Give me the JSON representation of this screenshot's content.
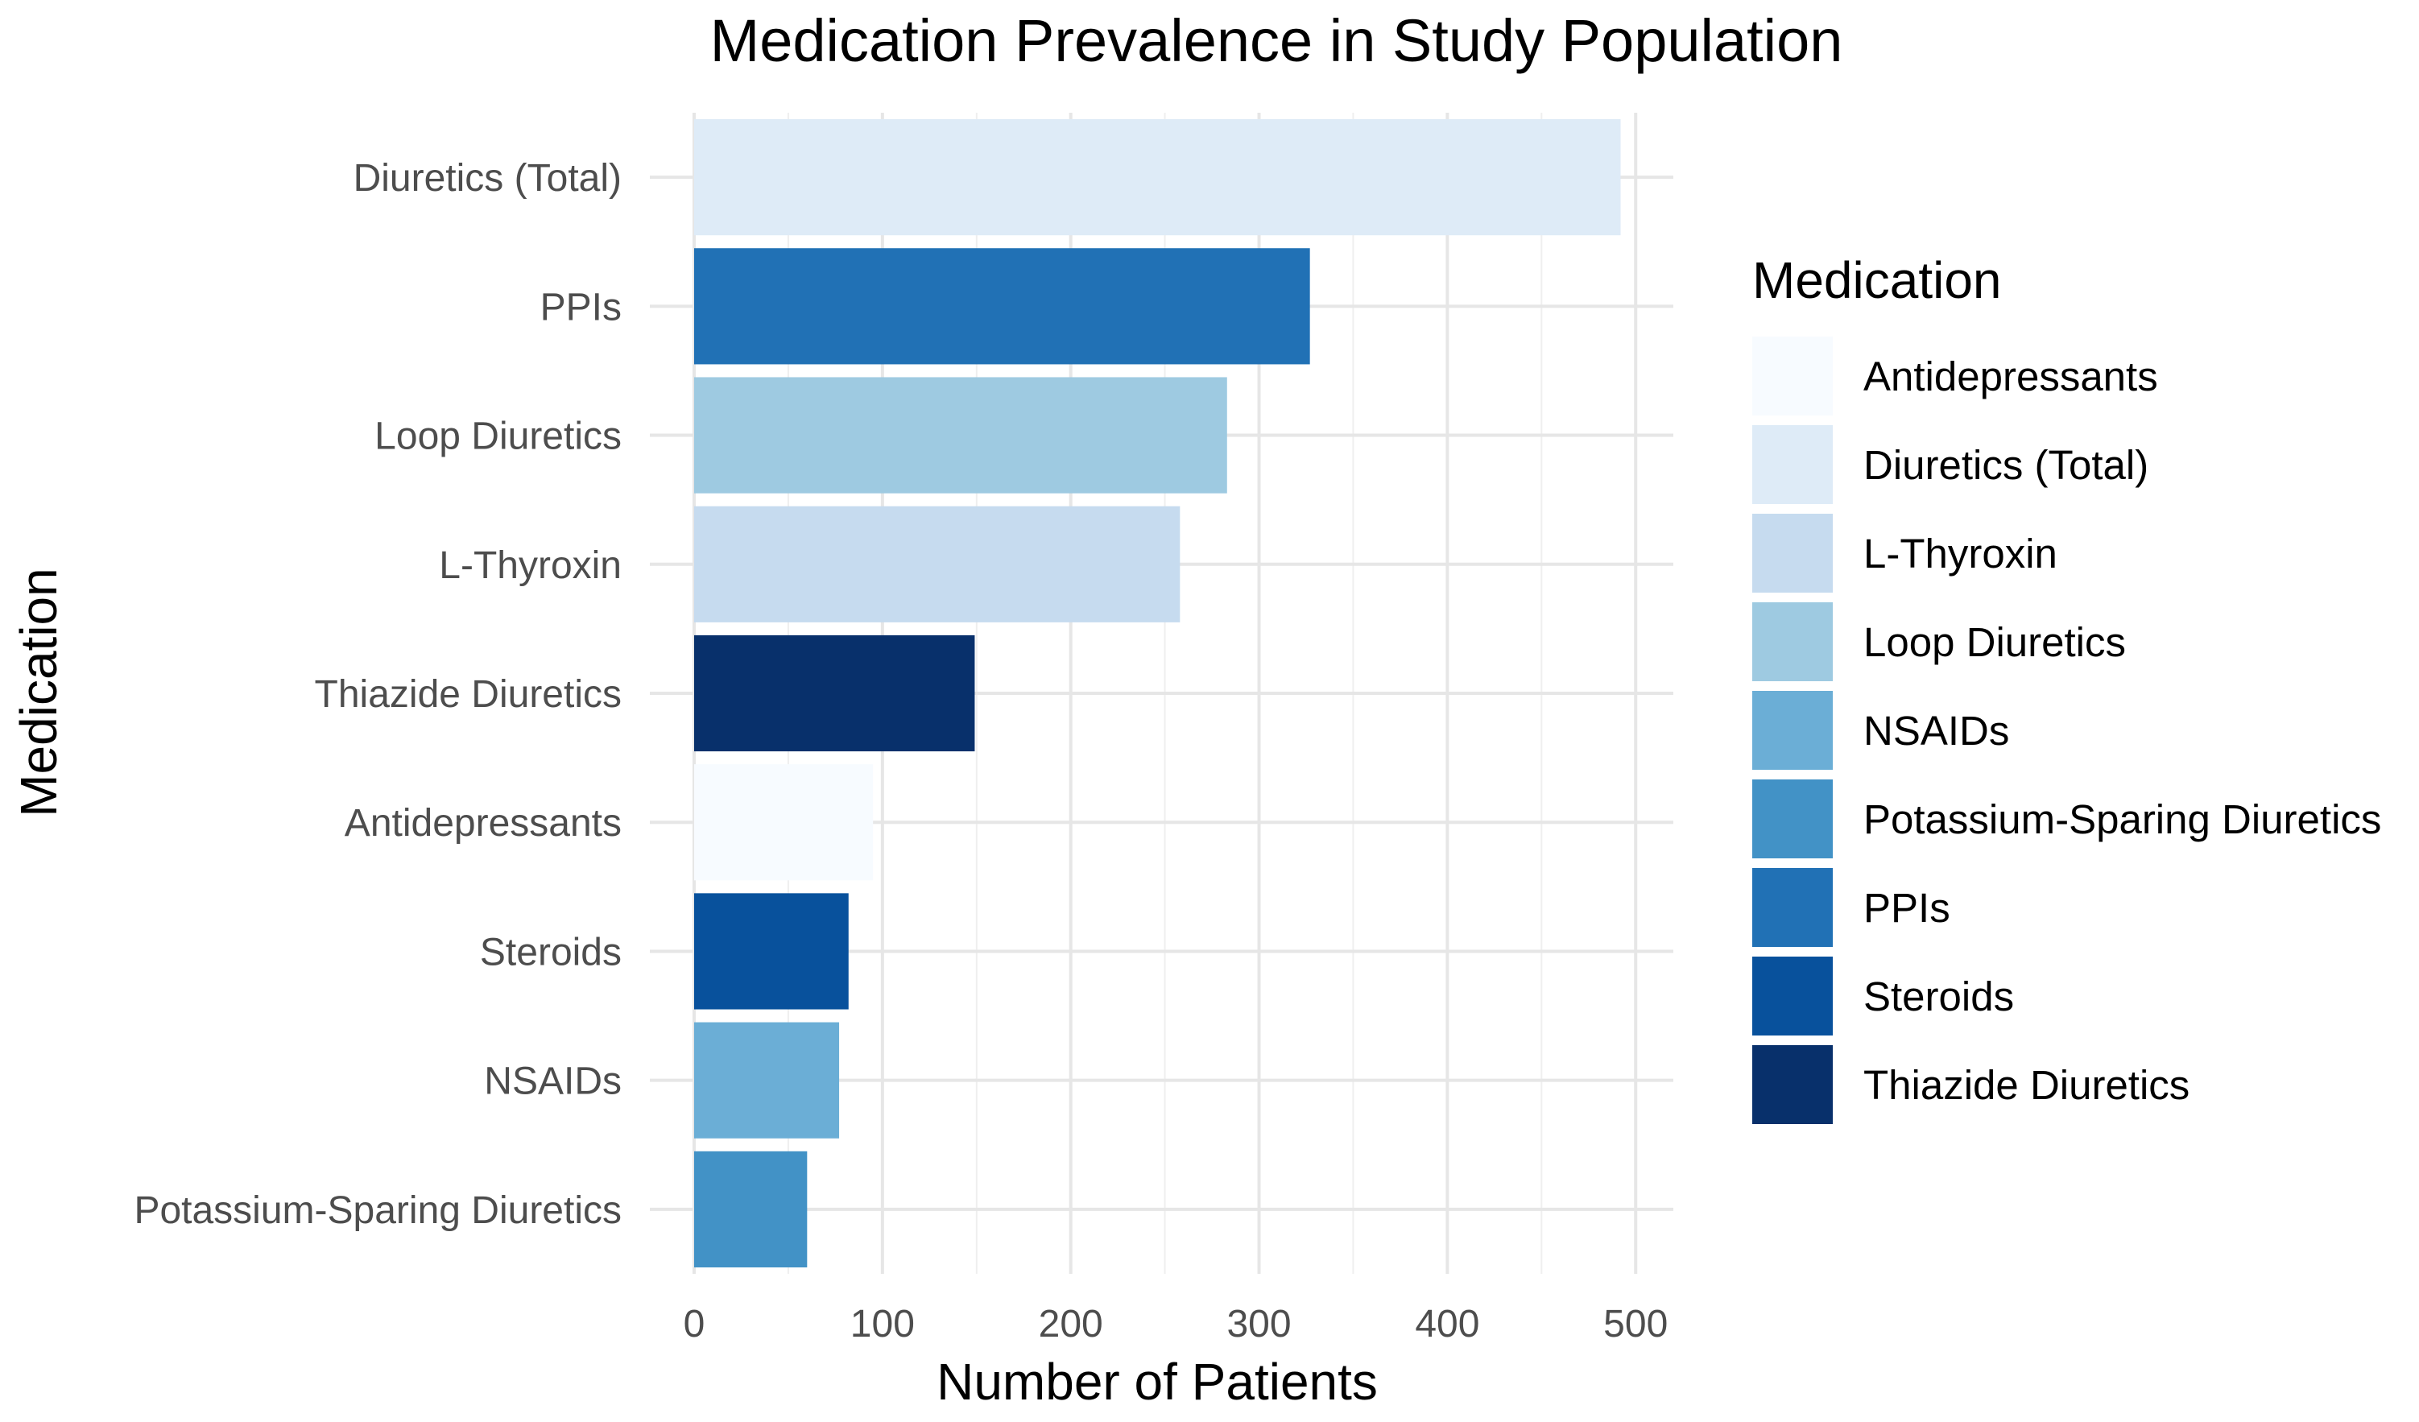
{
  "chart_data": {
    "type": "bar",
    "orientation": "horizontal",
    "title": "Medication Prevalence in Study Population",
    "xlabel": "Number of Patients",
    "ylabel": "Medication",
    "xlim": [
      0,
      520
    ],
    "x_ticks": [
      0,
      100,
      200,
      300,
      400,
      500
    ],
    "x_tick_labels": [
      "0",
      "100",
      "200",
      "300",
      "400",
      "500"
    ],
    "grid": true,
    "categories": [
      "Diuretics (Total)",
      "PPIs",
      "Loop Diuretics",
      "L-Thyroxin",
      "Thiazide Diuretics",
      "Antidepressants",
      "Steroids",
      "NSAIDs",
      "Potassium-Sparing Diuretics"
    ],
    "values": [
      492,
      327,
      283,
      258,
      149,
      95,
      82,
      77,
      60
    ],
    "colors": {
      "Antidepressants": "#f7fbff",
      "Diuretics (Total)": "#deebf7",
      "L-Thyroxin": "#c6dbef",
      "Loop Diuretics": "#9ecae1",
      "NSAIDs": "#6baed6",
      "Potassium-Sparing Diuretics": "#4292c6",
      "PPIs": "#2171b5",
      "Steroids": "#08519c",
      "Thiazide Diuretics": "#08306b"
    },
    "legend": {
      "title": "Medication",
      "position": "right",
      "entries": [
        "Antidepressants",
        "Diuretics (Total)",
        "L-Thyroxin",
        "Loop Diuretics",
        "NSAIDs",
        "Potassium-Sparing Diuretics",
        "PPIs",
        "Steroids",
        "Thiazide Diuretics"
      ]
    }
  }
}
